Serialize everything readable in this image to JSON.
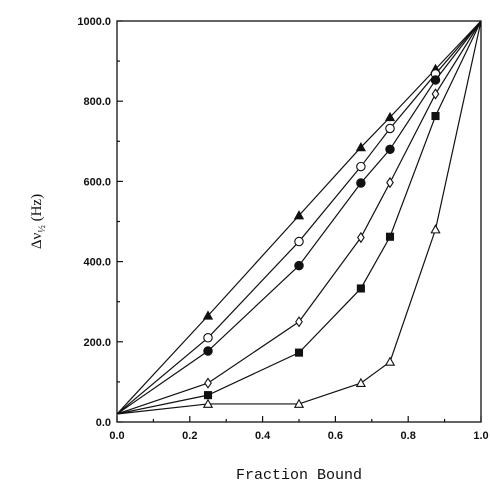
{
  "chart_data": {
    "type": "line",
    "title": "",
    "xlabel": "Fraction Bound",
    "ylabel": "Δν½ (Hz)",
    "ylabel_parts": {
      "delta": "Δ",
      "nu": "ν",
      "sub": "½",
      "rest": " (Hz)"
    },
    "xlim": [
      0.0,
      1.0
    ],
    "ylim": [
      0.0,
      1000.0
    ],
    "x_ticks": [
      0.0,
      0.2,
      0.4,
      0.6,
      0.8,
      1.0
    ],
    "x_tick_labels": [
      "0.0",
      "0.2",
      "0.4",
      "0.6",
      "0.8",
      "1.0"
    ],
    "y_ticks": [
      0,
      200,
      400,
      600,
      800,
      1000
    ],
    "y_tick_labels": [
      "0.0",
      "200.0",
      "400.0",
      "600.0",
      "800.0",
      "1000.0"
    ],
    "grid": false,
    "series": [
      {
        "marker": "filled-triangle",
        "x": [
          0.0,
          0.25,
          0.5,
          0.67,
          0.75,
          0.875,
          1.0
        ],
        "y": [
          20,
          265,
          515,
          685,
          760,
          880,
          1000
        ]
      },
      {
        "marker": "open-circle",
        "x": [
          0.0,
          0.25,
          0.5,
          0.67,
          0.75,
          0.875,
          1.0
        ],
        "y": [
          20,
          210,
          450,
          637,
          732,
          868,
          1000
        ]
      },
      {
        "marker": "filled-circle",
        "x": [
          0.0,
          0.25,
          0.5,
          0.67,
          0.75,
          0.875,
          1.0
        ],
        "y": [
          20,
          177,
          390,
          596,
          680,
          853,
          1000
        ]
      },
      {
        "marker": "open-diamond",
        "x": [
          0.0,
          0.25,
          0.5,
          0.67,
          0.75,
          0.875,
          1.0
        ],
        "y": [
          20,
          97,
          250,
          460,
          597,
          818,
          1000
        ]
      },
      {
        "marker": "filled-square",
        "x": [
          0.0,
          0.25,
          0.5,
          0.67,
          0.75,
          0.875,
          1.0
        ],
        "y": [
          20,
          67,
          173,
          333,
          462,
          763,
          1000
        ]
      },
      {
        "marker": "open-triangle",
        "x": [
          0.0,
          0.25,
          0.5,
          0.67,
          0.75,
          0.875,
          1.0
        ],
        "y": [
          20,
          45,
          45,
          97,
          150,
          480,
          1000
        ]
      }
    ]
  }
}
